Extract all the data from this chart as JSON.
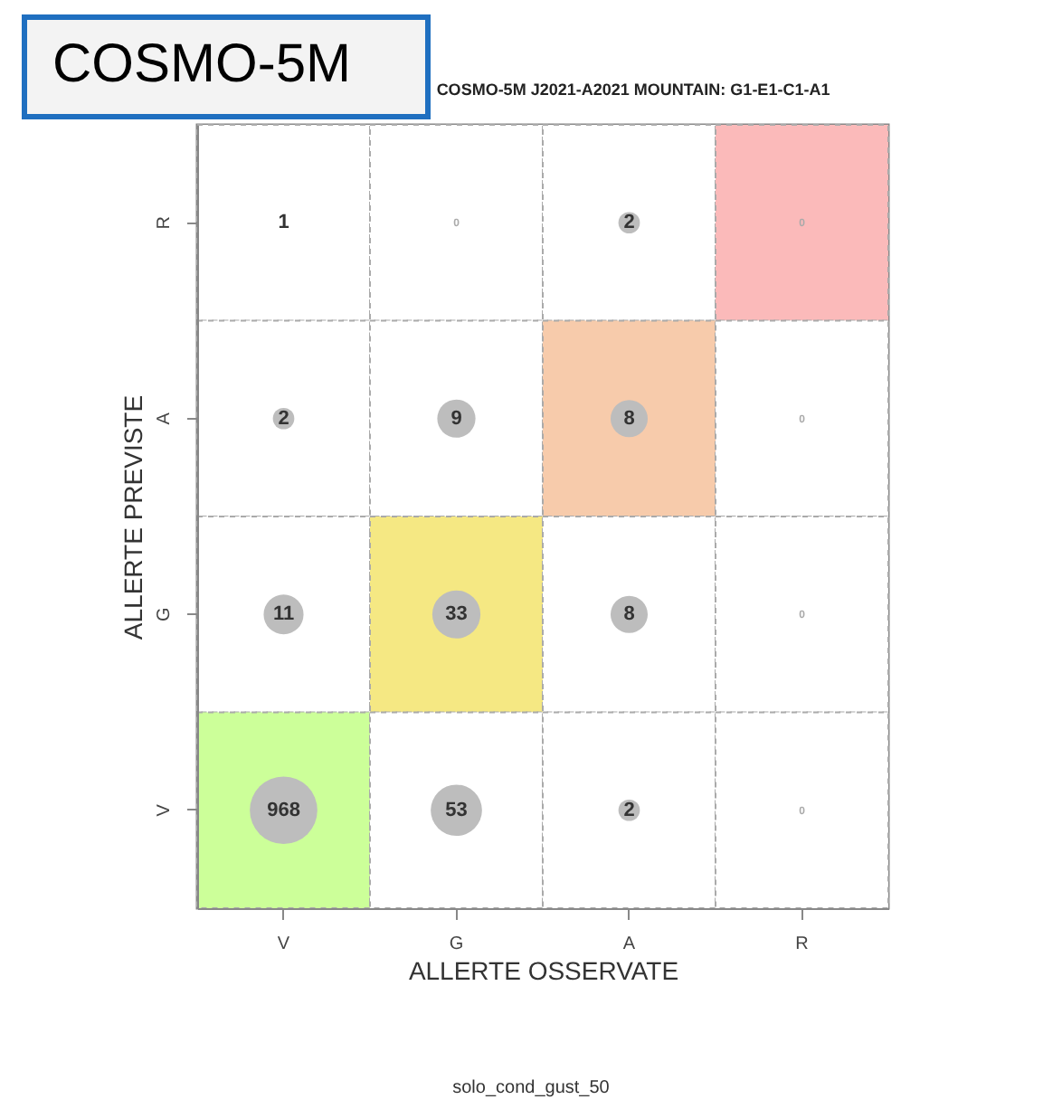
{
  "chart_data": {
    "type": "heatmap",
    "title": "COSMO-5M J2021-A2021 MOUNTAIN: G1-E1-C1-A1",
    "xlabel": "ALLERTE OSSERVATE",
    "ylabel": "ALLERTE PREVISTE",
    "annotations": [
      "COSMO-5M",
      "solo_cond_gust_50"
    ],
    "categories": [
      "V",
      "G",
      "A",
      "R"
    ],
    "y_categories": [
      "R",
      "A",
      "G",
      "V"
    ],
    "cells": [
      [
        1,
        0,
        2,
        0
      ],
      [
        2,
        9,
        8,
        0
      ],
      [
        11,
        33,
        8,
        0
      ],
      [
        968,
        53,
        2,
        0
      ]
    ],
    "colors": [
      "#ccff99",
      "#f5e883",
      "#f7cbab",
      "#fbbaba"
    ],
    "data_labels": true
  }
}
